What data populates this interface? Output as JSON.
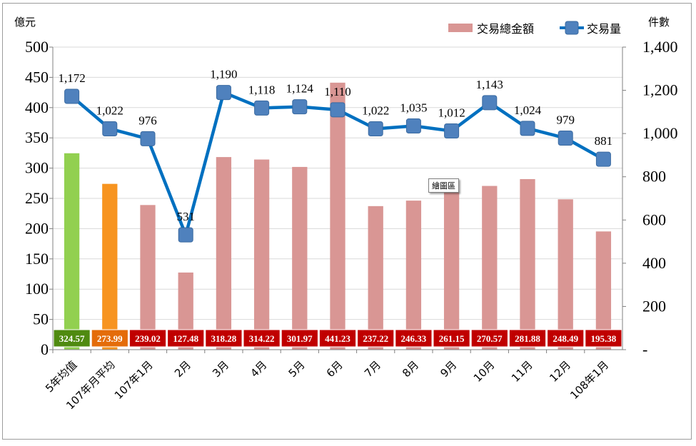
{
  "chart_data": {
    "type": "bar",
    "categories": [
      "5年均值",
      "107年月平均",
      "107年1月",
      "2月",
      "3月",
      "4月",
      "5月",
      "6月",
      "7月",
      "8月",
      "9月",
      "10月",
      "11月",
      "12月",
      "108年1月"
    ],
    "series": [
      {
        "name": "交易總金額",
        "type": "bar",
        "axis": "left",
        "values": [
          324.57,
          273.99,
          239.02,
          127.48,
          318.28,
          314.22,
          301.97,
          441.23,
          237.22,
          246.33,
          261.15,
          270.57,
          281.88,
          248.49,
          195.38
        ],
        "value_labels": [
          "324.57",
          "273.99",
          "239.02",
          "127.48",
          "318.28",
          "314.22",
          "301.97",
          "441.23",
          "237.22",
          "246.33",
          "261.15",
          "270.57",
          "281.88",
          "248.49",
          "195.38"
        ]
      },
      {
        "name": "交易量",
        "type": "line",
        "axis": "right",
        "values": [
          1172,
          1022,
          976,
          531,
          1190,
          1118,
          1124,
          1110,
          1022,
          1035,
          1012,
          1143,
          1024,
          979,
          881
        ],
        "value_labels": [
          "1,172",
          "1,022",
          "976",
          "531",
          "1,190",
          "1,118",
          "1,124",
          "1,110",
          "1,022",
          "1,035",
          "1,012",
          "1,143",
          "1,024",
          "979",
          "881"
        ]
      }
    ],
    "y_left": {
      "unit": "億元",
      "ylim": [
        0,
        500
      ],
      "ticks": [
        0,
        50,
        100,
        150,
        200,
        250,
        300,
        350,
        400,
        450,
        500
      ],
      "tick_labels": [
        "0",
        "50",
        "100",
        "150",
        "200",
        "250",
        "300",
        "350",
        "400",
        "450",
        "500"
      ]
    },
    "y_right": {
      "unit": "件數",
      "ylim": [
        0,
        1400
      ],
      "ticks": [
        0,
        200,
        400,
        600,
        800,
        1000,
        1200,
        1400
      ],
      "tick_labels": [
        "-",
        "200",
        "400",
        "600",
        "800",
        "1,000",
        "1,200",
        "1,400"
      ]
    },
    "legend_position": "top-right",
    "grid": true,
    "tooltip": "繪圖區",
    "colors": {
      "bar_default": "#d99694",
      "bar_first": "#92d050",
      "bar_second": "#f79420",
      "label_bg_first": "#4f8a10",
      "label_bg_second": "#e46c0a",
      "label_bg_default": "#c00000",
      "line": "#0070c0",
      "marker": "#4f81bd",
      "grid": "#d9d9d9"
    }
  }
}
